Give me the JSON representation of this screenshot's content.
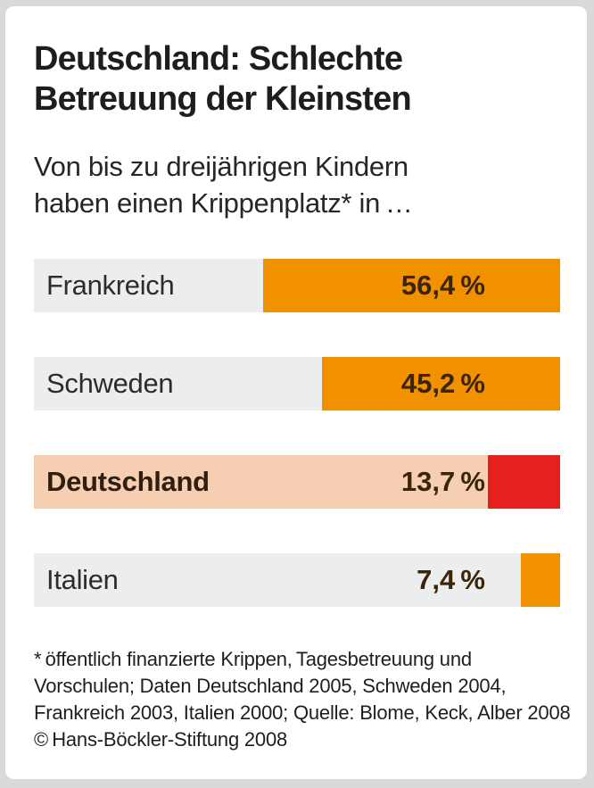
{
  "header": {
    "title_line1": "Deutschland: Schlechte",
    "title_line2": "Betreuung der Kleinsten",
    "subtitle_line1": "Von bis zu dreijährigen Kindern",
    "subtitle_line2": "haben einen Krippenplatz* in …"
  },
  "chart_data": {
    "type": "bar",
    "orientation": "horizontal",
    "title": "Deutschland: Schlechte Betreuung der Kleinsten",
    "subtitle": "Von bis zu dreijährigen Kindern haben einen Krippenplatz* in …",
    "categories": [
      "Frankreich",
      "Schweden",
      "Deutschland",
      "Italien"
    ],
    "values": [
      56.4,
      45.2,
      13.7,
      7.4
    ],
    "value_labels": [
      "56,4 %",
      "45,2 %",
      "13,7 %",
      "7,4 %"
    ],
    "unit": "%",
    "xlim": [
      0,
      100
    ],
    "grid": false,
    "legend": false,
    "highlighted_category": "Deutschland",
    "bar_colors": [
      "#F29100",
      "#F29100",
      "#E5201E",
      "#F29100"
    ],
    "row_background": "#ECEDEF",
    "highlight_row_background": "#F6CEB2",
    "accent_orange": "#F29100",
    "accent_red": "#E5201E"
  },
  "footnote": {
    "lines": [
      "* öffentlich finanzierte Krippen, Tagesbetreuung und",
      "Vorschulen; Daten Deutschland 2005, Schweden 2004,",
      "Frankreich 2003, Italien 2000; Quelle: Blome, Keck, Alber 2008"
    ],
    "copyright": "© Hans-Böckler-Stiftung 2008"
  }
}
